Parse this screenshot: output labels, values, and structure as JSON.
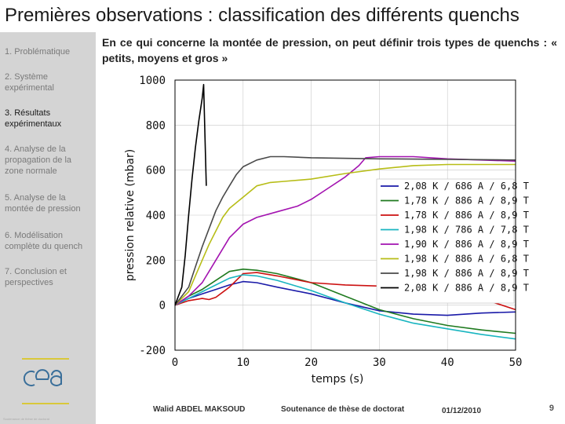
{
  "slide": {
    "title": "Premières observations : classification des différents quenchs",
    "intro": "En ce qui concerne la montée de pression, on peut définir trois types de quenchs : « petits, moyens et gros »"
  },
  "sidebar": {
    "items": [
      {
        "label": "1. Problématique",
        "active": false
      },
      {
        "label": "2. Système expérimental",
        "active": false
      },
      {
        "label": "3. Résultats expérimentaux",
        "active": true
      },
      {
        "label": "4. Analyse de la propagation de la zone normale",
        "active": false
      },
      {
        "label": "5. Analyse de la montée de pression",
        "active": false
      },
      {
        "label": "6. Modélisation complète du quench",
        "active": false
      },
      {
        "label": "7. Conclusion et perspectives",
        "active": false
      }
    ],
    "logo_text": "cea"
  },
  "footer": {
    "author": "Walid ABDEL MAKSOUD",
    "event": "Soutenance de thèse de doctorat",
    "date": "01/12/2010",
    "page": "9"
  },
  "chart_data": {
    "type": "line",
    "title": "",
    "xlabel": "temps (s)",
    "ylabel": "pression relative (mbar)",
    "xlim": [
      0,
      50
    ],
    "ylim": [
      -200,
      1000
    ],
    "xticks": [
      0,
      10,
      20,
      30,
      40,
      50
    ],
    "yticks": [
      -200,
      0,
      200,
      400,
      600,
      800,
      1000
    ],
    "grid": true,
    "legend_position": "right",
    "series": [
      {
        "name": "2,08 K / 686 A / 6,8 T",
        "color": "#1a1aa8",
        "x": [
          0,
          2,
          4,
          6,
          8,
          10,
          12,
          15,
          20,
          25,
          30,
          35,
          40,
          45,
          50
        ],
        "y": [
          0,
          30,
          50,
          70,
          90,
          105,
          100,
          80,
          50,
          10,
          -25,
          -40,
          -45,
          -35,
          -30
        ]
      },
      {
        "name": "1,78 K / 886 A / 8,9 T",
        "color": "#1f7a1f",
        "x": [
          0,
          2,
          4,
          6,
          8,
          10,
          12,
          15,
          20,
          25,
          30,
          35,
          40,
          45,
          50
        ],
        "y": [
          0,
          40,
          70,
          110,
          150,
          160,
          155,
          140,
          100,
          40,
          -20,
          -60,
          -90,
          -110,
          -125
        ]
      },
      {
        "name": "1,78 K / 886 A / 8,9 T",
        "color": "#cc1111",
        "x": [
          0,
          2,
          4,
          5,
          6,
          8,
          10,
          12,
          15,
          20,
          25,
          30,
          35,
          40,
          45,
          50
        ],
        "y": [
          0,
          20,
          30,
          25,
          35,
          80,
          140,
          145,
          130,
          100,
          90,
          85,
          70,
          55,
          30,
          -20
        ]
      },
      {
        "name": "1,98 K / 786 A / 7,8 T",
        "color": "#19b5c0",
        "x": [
          0,
          2,
          4,
          6,
          8,
          10,
          12,
          15,
          20,
          25,
          30,
          35,
          40,
          45,
          50
        ],
        "y": [
          0,
          30,
          60,
          90,
          120,
          135,
          130,
          110,
          65,
          10,
          -40,
          -80,
          -105,
          -130,
          -150
        ]
      },
      {
        "name": "1,90 K / 886 A / 8,9 T",
        "color": "#a313b0",
        "x": [
          0,
          2,
          4,
          5,
          6,
          8,
          10,
          12,
          15,
          18,
          20,
          22,
          25,
          27,
          28,
          30,
          35,
          40,
          45,
          50
        ],
        "y": [
          0,
          40,
          100,
          150,
          200,
          300,
          360,
          390,
          415,
          440,
          470,
          510,
          570,
          620,
          655,
          660,
          660,
          650,
          645,
          640
        ]
      },
      {
        "name": "1,98 K / 886 A / 6,8 T",
        "color": "#b7bd17",
        "x": [
          0,
          2,
          3,
          4,
          5,
          6,
          7,
          8,
          10,
          12,
          14,
          16,
          20,
          25,
          30,
          35,
          40,
          45,
          50
        ],
        "y": [
          0,
          60,
          130,
          200,
          270,
          330,
          390,
          430,
          480,
          530,
          545,
          550,
          560,
          585,
          605,
          620,
          625,
          625,
          625
        ]
      },
      {
        "name": "1,98 K / 886 A / 8,9 T",
        "color": "#4a4a4a",
        "x": [
          0,
          2,
          3,
          4,
          5,
          6,
          7,
          8,
          9,
          10,
          12,
          14,
          16,
          20,
          30,
          40,
          50
        ],
        "y": [
          0,
          80,
          170,
          260,
          340,
          420,
          480,
          530,
          580,
          615,
          645,
          660,
          660,
          655,
          650,
          648,
          645
        ]
      },
      {
        "name": "2,08 K / 886 A / 8,9 T",
        "color": "#000000",
        "x": [
          0,
          1,
          1.5,
          2,
          2.5,
          3,
          3.5,
          4,
          4.2,
          4.4,
          4.6
        ],
        "y": [
          0,
          80,
          220,
          400,
          560,
          700,
          820,
          920,
          980,
          750,
          530
        ]
      }
    ]
  }
}
